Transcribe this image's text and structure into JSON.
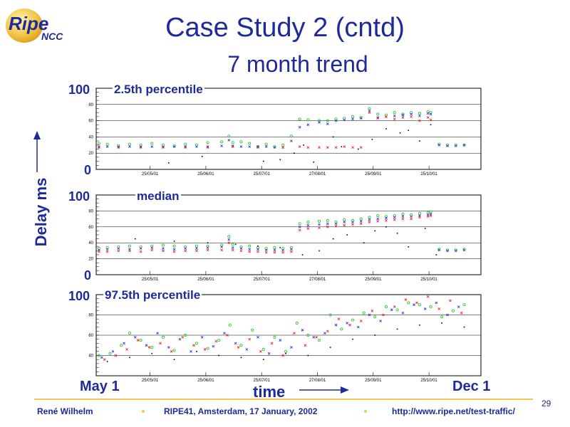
{
  "header": {
    "logo_main": "Ripe",
    "logo_sub": "NCC",
    "title": "Case Study 2 (cntd)",
    "subtitle": "7 month trend"
  },
  "axis": {
    "ylabel": "Delay ms",
    "xlabel": "time",
    "x_start": "May 1",
    "x_end": "Dec 1",
    "y_top": "100",
    "y_bottom": "0"
  },
  "panels": {
    "p1": "2.5th percentile",
    "p2": "median",
    "p3": "97.5th percentile"
  },
  "footer": {
    "author": "René  Wilhelm",
    "event": "RIPE41, Amsterdam, 17 January, 2002",
    "url": "http://www.ripe.net/test-traffic/",
    "page": "29"
  },
  "colors": {
    "text": "#1f2a9a",
    "accent": "#f2c84b",
    "green": "#33cc33",
    "blue": "#3333ff",
    "red": "#ff2222",
    "black": "#000000"
  },
  "chart_data": [
    {
      "type": "scatter",
      "title": "2.5th percentile",
      "ylim": [
        0,
        100
      ],
      "y_ticks": [
        20,
        40,
        60,
        80
      ],
      "x_ticks": [
        "25/05/01",
        "25/06/01",
        "25/07/01",
        "27/08/01",
        "25/09/01",
        "25/10/01"
      ],
      "series": [
        {
          "x": [
            5,
            20,
            40,
            60,
            80,
            100,
            120,
            140,
            160,
            180,
            200,
            225,
            238,
            245,
            260,
            275,
            290,
            305,
            320,
            335,
            350,
            365,
            380,
            400,
            415,
            430,
            445,
            460,
            475,
            490,
            505,
            520,
            535,
            550,
            565,
            580,
            595,
            600,
            615,
            630,
            645,
            660
          ],
          "y": [
            32,
            31,
            29,
            31,
            30,
            32,
            30,
            29,
            31,
            30,
            33,
            34,
            41,
            33,
            34,
            32,
            28,
            31,
            28,
            30,
            41,
            62,
            61,
            60,
            60,
            62,
            63,
            65,
            64,
            75,
            68,
            67,
            70,
            68,
            70,
            69,
            71,
            70,
            31,
            30,
            30,
            30
          ]
        },
        {
          "x": [
            5,
            20,
            40,
            60,
            80,
            100,
            120,
            140,
            160,
            180,
            200,
            225,
            238,
            245,
            260,
            275,
            290,
            305,
            320,
            335,
            350,
            365,
            380,
            400,
            415,
            430,
            445,
            460,
            475,
            490,
            505,
            520,
            535,
            550,
            565,
            580,
            595,
            600,
            615,
            630,
            645,
            660
          ],
          "y": [
            28,
            28,
            28,
            28,
            28,
            28,
            28,
            28,
            28,
            28,
            28,
            29,
            36,
            29,
            28,
            28,
            28,
            28,
            27,
            27,
            35,
            52,
            55,
            58,
            56,
            60,
            61,
            62,
            63,
            72,
            64,
            65,
            66,
            67,
            68,
            66,
            69,
            68,
            30,
            29,
            29,
            30
          ]
        },
        {
          "x": [
            5,
            40,
            80,
            120,
            160,
            200,
            245,
            290,
            335,
            365,
            380,
            400,
            415,
            430,
            445,
            460,
            475,
            490,
            505,
            520,
            535,
            550,
            565,
            580,
            595,
            600
          ],
          "y": [
            27,
            27,
            27,
            27,
            27,
            27,
            28,
            27,
            27,
            28,
            27,
            27,
            27,
            27,
            28,
            27,
            27,
            70,
            63,
            65,
            62,
            64,
            65,
            60,
            64,
            61
          ]
        },
        {
          "x": [
            130,
            190,
            300,
            330,
            355,
            372,
            390,
            425,
            440,
            470,
            495,
            520,
            545,
            560,
            580,
            600
          ],
          "y": [
            8,
            16,
            10,
            12,
            20,
            30,
            9,
            40,
            28,
            25,
            37,
            50,
            45,
            48,
            35,
            55
          ]
        }
      ]
    },
    {
      "type": "scatter",
      "title": "median",
      "ylim": [
        0,
        100
      ],
      "y_ticks": [
        20,
        40,
        60,
        80
      ],
      "x_ticks": [
        "25/05/01",
        "25/06/01",
        "25/07/01",
        "27/08/01",
        "25/09/01",
        "25/10/01"
      ],
      "series": [
        {
          "x": [
            5,
            20,
            40,
            60,
            80,
            100,
            120,
            140,
            160,
            180,
            200,
            225,
            238,
            245,
            260,
            275,
            290,
            305,
            320,
            335,
            350,
            365,
            380,
            400,
            415,
            430,
            445,
            460,
            475,
            490,
            505,
            520,
            535,
            550,
            565,
            580,
            595,
            600,
            615,
            630,
            645,
            660
          ],
          "y": [
            33,
            34,
            35,
            36,
            35,
            36,
            37,
            36,
            35,
            36,
            36,
            37,
            48,
            38,
            35,
            36,
            34,
            33,
            34,
            33,
            34,
            64,
            66,
            67,
            68,
            66,
            69,
            68,
            70,
            72,
            74,
            73,
            74,
            76,
            75,
            77,
            78,
            79,
            32,
            31,
            31,
            32
          ]
        },
        {
          "x": [
            5,
            20,
            40,
            60,
            80,
            100,
            120,
            140,
            160,
            180,
            200,
            225,
            238,
            245,
            260,
            275,
            290,
            305,
            320,
            335,
            350,
            365,
            380,
            400,
            415,
            430,
            445,
            460,
            475,
            490,
            505,
            520,
            535,
            550,
            565,
            580,
            595,
            600,
            615,
            630,
            645,
            660
          ],
          "y": [
            31,
            32,
            33,
            32,
            33,
            34,
            33,
            32,
            33,
            33,
            34,
            35,
            44,
            34,
            33,
            32,
            32,
            31,
            31,
            31,
            32,
            60,
            62,
            63,
            64,
            64,
            66,
            66,
            67,
            69,
            70,
            71,
            72,
            73,
            73,
            74,
            75,
            76,
            31,
            30,
            30,
            31
          ]
        },
        {
          "x": [
            5,
            20,
            40,
            60,
            80,
            100,
            120,
            140,
            160,
            180,
            200,
            225,
            238,
            245,
            260,
            275,
            290,
            305,
            320,
            335,
            350,
            365,
            380,
            400,
            415,
            430,
            445,
            460,
            475,
            490,
            505,
            520,
            535,
            550,
            565,
            580,
            595,
            600
          ],
          "y": [
            29,
            29,
            30,
            30,
            29,
            31,
            30,
            29,
            30,
            30,
            31,
            31,
            40,
            31,
            30,
            29,
            29,
            28,
            28,
            28,
            29,
            56,
            58,
            59,
            60,
            61,
            62,
            63,
            64,
            66,
            67,
            68,
            69,
            70,
            70,
            72,
            73,
            74
          ]
        },
        {
          "x": [
            70,
            140,
            200,
            250,
            290,
            330,
            370,
            400,
            425,
            450,
            480,
            500,
            520,
            540,
            560,
            590,
            610
          ],
          "y": [
            45,
            42,
            40,
            38,
            36,
            34,
            25,
            30,
            45,
            50,
            40,
            55,
            60,
            52,
            35,
            58,
            25
          ]
        }
      ]
    },
    {
      "type": "scatter",
      "title": "97.5th percentile",
      "ylim": [
        20,
        100
      ],
      "y_ticks": [
        20,
        40,
        60,
        80
      ],
      "x_ticks": [
        "25/05/01",
        "25/06/01",
        "25/07/01",
        "27/08/01",
        "25/09/01",
        "25/10/01"
      ],
      "series": [
        {
          "x": [
            5,
            25,
            45,
            60,
            80,
            100,
            120,
            140,
            160,
            180,
            200,
            220,
            240,
            260,
            280,
            300,
            320,
            340,
            360,
            380,
            400,
            420,
            440,
            460,
            480,
            500,
            520,
            540,
            560,
            580,
            600,
            620,
            640,
            660
          ],
          "y": [
            40,
            42,
            50,
            62,
            55,
            48,
            58,
            45,
            60,
            52,
            47,
            55,
            70,
            50,
            65,
            46,
            58,
            44,
            72,
            60,
            55,
            80,
            66,
            75,
            82,
            78,
            88,
            85,
            92,
            90,
            88,
            78,
            84,
            90
          ]
        },
        {
          "x": [
            10,
            30,
            50,
            70,
            90,
            110,
            130,
            150,
            170,
            190,
            210,
            230,
            250,
            270,
            290,
            310,
            330,
            350,
            370,
            390,
            410,
            430,
            450,
            470,
            490,
            510,
            530,
            550,
            570,
            590,
            610,
            630,
            650
          ],
          "y": [
            38,
            44,
            52,
            58,
            50,
            62,
            48,
            56,
            44,
            58,
            49,
            62,
            52,
            46,
            58,
            42,
            55,
            48,
            65,
            58,
            62,
            70,
            72,
            68,
            80,
            74,
            85,
            82,
            90,
            86,
            92,
            80,
            88
          ]
        },
        {
          "x": [
            15,
            35,
            55,
            75,
            95,
            115,
            135,
            155,
            175,
            195,
            215,
            235,
            255,
            275,
            295,
            315,
            335,
            355,
            375,
            395,
            415,
            435,
            455,
            475,
            495,
            515,
            535,
            555,
            575,
            595,
            615,
            635,
            655
          ],
          "y": [
            36,
            40,
            46,
            55,
            48,
            52,
            44,
            58,
            50,
            46,
            54,
            60,
            48,
            56,
            44,
            52,
            40,
            62,
            50,
            58,
            64,
            76,
            70,
            74,
            84,
            80,
            88,
            95,
            92,
            98,
            86,
            94,
            82
          ]
        },
        {
          "x": [
            20,
            60,
            100,
            140,
            180,
            220,
            260,
            300,
            340,
            380,
            420,
            460,
            500,
            540,
            580,
            620,
            660
          ],
          "y": [
            34,
            38,
            42,
            36,
            44,
            40,
            38,
            36,
            42,
            40,
            48,
            56,
            60,
            66,
            70,
            72,
            68
          ]
        }
      ]
    }
  ]
}
